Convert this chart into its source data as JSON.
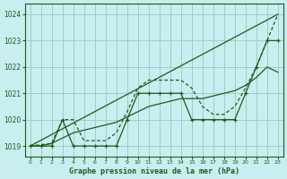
{
  "title": "Graphe pression niveau de la mer (hPa)",
  "bg_color": "#c8eef0",
  "line_color": "#1a5c1a",
  "grid_color": "#a0ccc8",
  "xlim": [
    -0.5,
    23.5
  ],
  "ylim": [
    1018.6,
    1024.4
  ],
  "yticks": [
    1019,
    1020,
    1021,
    1022,
    1023,
    1024
  ],
  "xticks": [
    0,
    1,
    2,
    3,
    4,
    5,
    6,
    7,
    8,
    9,
    10,
    11,
    12,
    13,
    14,
    15,
    16,
    17,
    18,
    19,
    20,
    21,
    22,
    23
  ],
  "line_straight": {
    "x": [
      0,
      23
    ],
    "y": [
      1019.0,
      1024.0
    ]
  },
  "line_dashed": {
    "x": [
      0,
      2,
      3,
      4,
      5,
      6,
      7,
      8,
      9,
      10,
      11,
      12,
      13,
      14,
      15,
      16,
      17,
      18,
      19,
      20,
      21,
      22,
      23
    ],
    "y": [
      1019.0,
      1019.1,
      1020.0,
      1020.0,
      1019.2,
      1019.2,
      1019.2,
      1019.5,
      1020.3,
      1021.2,
      1021.5,
      1021.5,
      1021.5,
      1021.5,
      1021.2,
      1020.5,
      1020.2,
      1020.2,
      1020.5,
      1021.2,
      1022.0,
      1023.0,
      1024.0
    ]
  },
  "line_markers": {
    "x": [
      0,
      1,
      2,
      3,
      4,
      5,
      6,
      7,
      8,
      9,
      10,
      11,
      12,
      13,
      14,
      15,
      16,
      17,
      18,
      19,
      20,
      21,
      22,
      23
    ],
    "y": [
      1019.0,
      1019.0,
      1019.0,
      1020.0,
      1019.0,
      1019.0,
      1019.0,
      1019.0,
      1019.0,
      1020.0,
      1021.0,
      1021.0,
      1021.0,
      1021.0,
      1021.0,
      1020.0,
      1020.0,
      1020.0,
      1020.0,
      1020.0,
      1021.0,
      1022.0,
      1023.0,
      1023.0
    ]
  },
  "line_smooth": {
    "x": [
      0,
      1,
      2,
      3,
      4,
      5,
      6,
      7,
      8,
      9,
      10,
      11,
      12,
      13,
      14,
      15,
      16,
      17,
      18,
      19,
      20,
      21,
      22,
      23
    ],
    "y": [
      1019.0,
      1019.0,
      1019.1,
      1019.3,
      1019.5,
      1019.6,
      1019.7,
      1019.8,
      1019.9,
      1020.1,
      1020.3,
      1020.5,
      1020.6,
      1020.7,
      1020.8,
      1020.8,
      1020.8,
      1020.9,
      1021.0,
      1021.1,
      1021.3,
      1021.6,
      1022.0,
      1021.8
    ]
  }
}
